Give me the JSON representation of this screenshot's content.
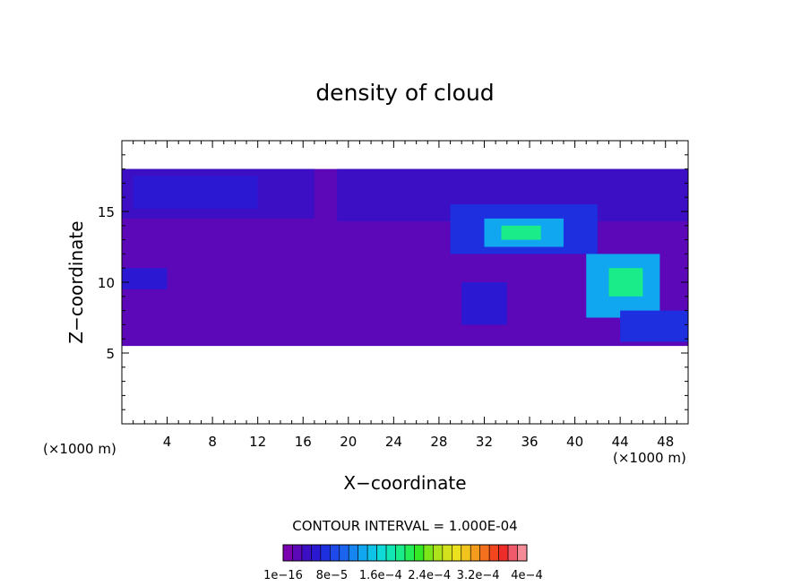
{
  "chart_data": {
    "type": "heatmap",
    "title": "density of cloud",
    "xlabel": "X−coordinate",
    "ylabel": "Z−coordinate",
    "x_unit": "(×1000 m)",
    "y_unit": "(×1000 m)",
    "xlim": [
      0,
      50
    ],
    "ylim": [
      0,
      20
    ],
    "x_ticks": [
      4,
      8,
      12,
      16,
      20,
      24,
      28,
      32,
      36,
      40,
      44,
      48
    ],
    "y_ticks": [
      5,
      10,
      15
    ],
    "contour_interval_label": "CONTOUR INTERVAL = 1.000E-04",
    "colorbar": {
      "colors": [
        "#7a00b0",
        "#5c08b8",
        "#3c0fc4",
        "#2b18d2",
        "#1e2fe0",
        "#1d4ae8",
        "#1a64ee",
        "#1685f0",
        "#10a6f0",
        "#0fc2e8",
        "#0fdad8",
        "#12e6b4",
        "#19ec88",
        "#25ee55",
        "#35ea25",
        "#7ce61a",
        "#aee21a",
        "#d2e11c",
        "#ece11f",
        "#f2c41e",
        "#f49a1c",
        "#f4701e",
        "#f2461f",
        "#ee2c2a",
        "#f05a6a",
        "#f48c98"
      ],
      "tick_labels": [
        "1e−16",
        "8e−5",
        "1.6e−4",
        "2.4e−4",
        "3.2e−4",
        "4e−4"
      ]
    },
    "regions": [
      {
        "level": 1,
        "x": [
          0,
          50
        ],
        "z": [
          5.5,
          18
        ]
      },
      {
        "level": 2,
        "x": [
          0,
          17
        ],
        "z": [
          14.5,
          18
        ]
      },
      {
        "level": 3,
        "x": [
          1,
          12
        ],
        "z": [
          15.2,
          17.5
        ]
      },
      {
        "level": 2,
        "x": [
          19,
          50
        ],
        "z": [
          14.3,
          18
        ]
      },
      {
        "level": 4,
        "x": [
          29,
          42
        ],
        "z": [
          12,
          15.5
        ]
      },
      {
        "level": 8,
        "x": [
          32,
          39
        ],
        "z": [
          12.5,
          14.5
        ]
      },
      {
        "level": 12,
        "x": [
          33.5,
          37
        ],
        "z": [
          13,
          14
        ]
      },
      {
        "level": 8,
        "x": [
          41,
          47.5
        ],
        "z": [
          7.5,
          12
        ]
      },
      {
        "level": 12,
        "x": [
          43,
          46
        ],
        "z": [
          9,
          11
        ]
      },
      {
        "level": 4,
        "x": [
          44,
          50
        ],
        "z": [
          5.8,
          8
        ]
      },
      {
        "level": 3,
        "x": [
          0,
          4
        ],
        "z": [
          9.5,
          11
        ]
      },
      {
        "level": 3,
        "x": [
          30,
          34
        ],
        "z": [
          7,
          10
        ]
      }
    ]
  }
}
